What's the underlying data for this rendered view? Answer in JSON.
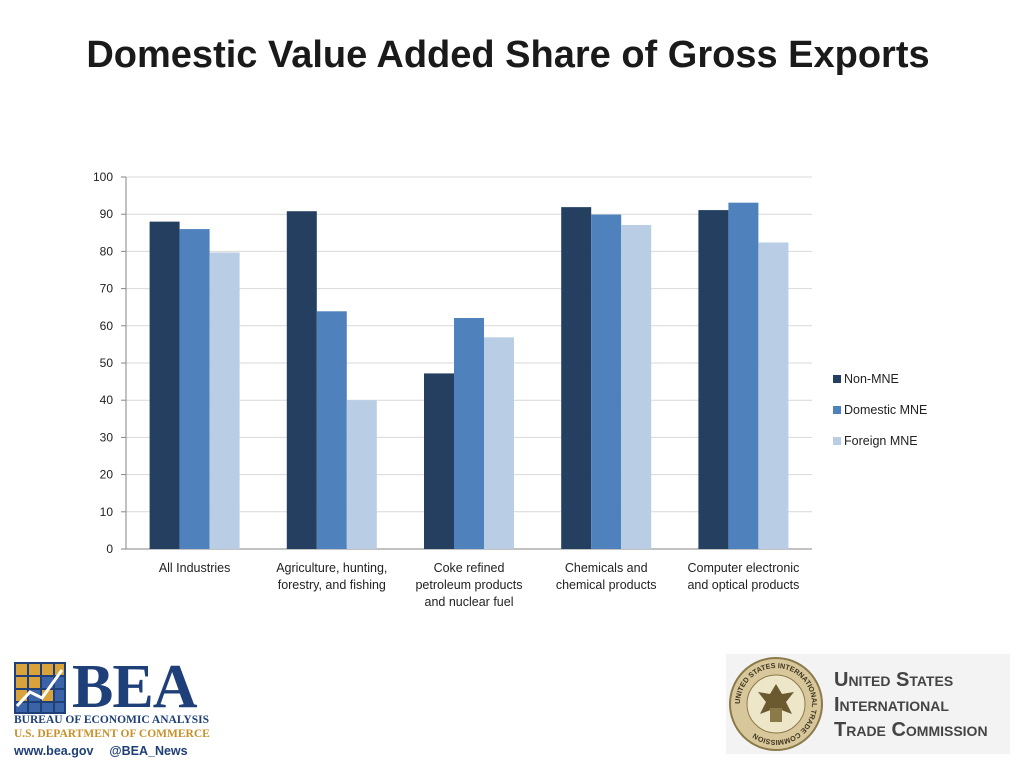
{
  "slide": {
    "title": "Domestic Value Added Share of Gross Exports"
  },
  "chart_data": {
    "type": "bar",
    "title": "",
    "xlabel": "",
    "ylabel": "",
    "ylim": [
      0,
      100
    ],
    "yticks": [
      0,
      10,
      20,
      30,
      40,
      50,
      60,
      70,
      80,
      90,
      100
    ],
    "grid": true,
    "legend_position": "right",
    "categories": [
      [
        "All Industries"
      ],
      [
        "Agriculture, hunting,",
        "forestry, and fishing"
      ],
      [
        "Coke refined",
        "petroleum products",
        "and nuclear fuel"
      ],
      [
        "Chemicals and",
        "chemical products"
      ],
      [
        "Computer electronic",
        "and optical products"
      ]
    ],
    "series": [
      {
        "name": "Non-MNE",
        "color": "#243f60",
        "values": [
          88,
          90.8,
          47.2,
          91.9,
          91.1
        ]
      },
      {
        "name": "Domestic MNE",
        "color": "#4f81bd",
        "values": [
          86,
          63.9,
          62.1,
          89.9,
          93.1
        ]
      },
      {
        "name": "Foreign MNE",
        "color": "#b9cde5",
        "values": [
          79.7,
          40,
          56.9,
          87.1,
          82.4
        ]
      }
    ]
  },
  "logos": {
    "bea": {
      "letters": "BEA",
      "line1": "BUREAU OF ECONOMIC ANALYSIS",
      "line2": "U.S. DEPARTMENT OF COMMERCE",
      "website": "www.bea.gov",
      "twitter": "@BEA_News",
      "primary_color": "#1f3f78",
      "accent_color": "#c8902a"
    },
    "usitc": {
      "line1": "United States",
      "line2": "International",
      "line3": "Trade Commission",
      "seal_text": "UNITED STATES INTERNATIONAL TRADE COMMISSION"
    }
  }
}
